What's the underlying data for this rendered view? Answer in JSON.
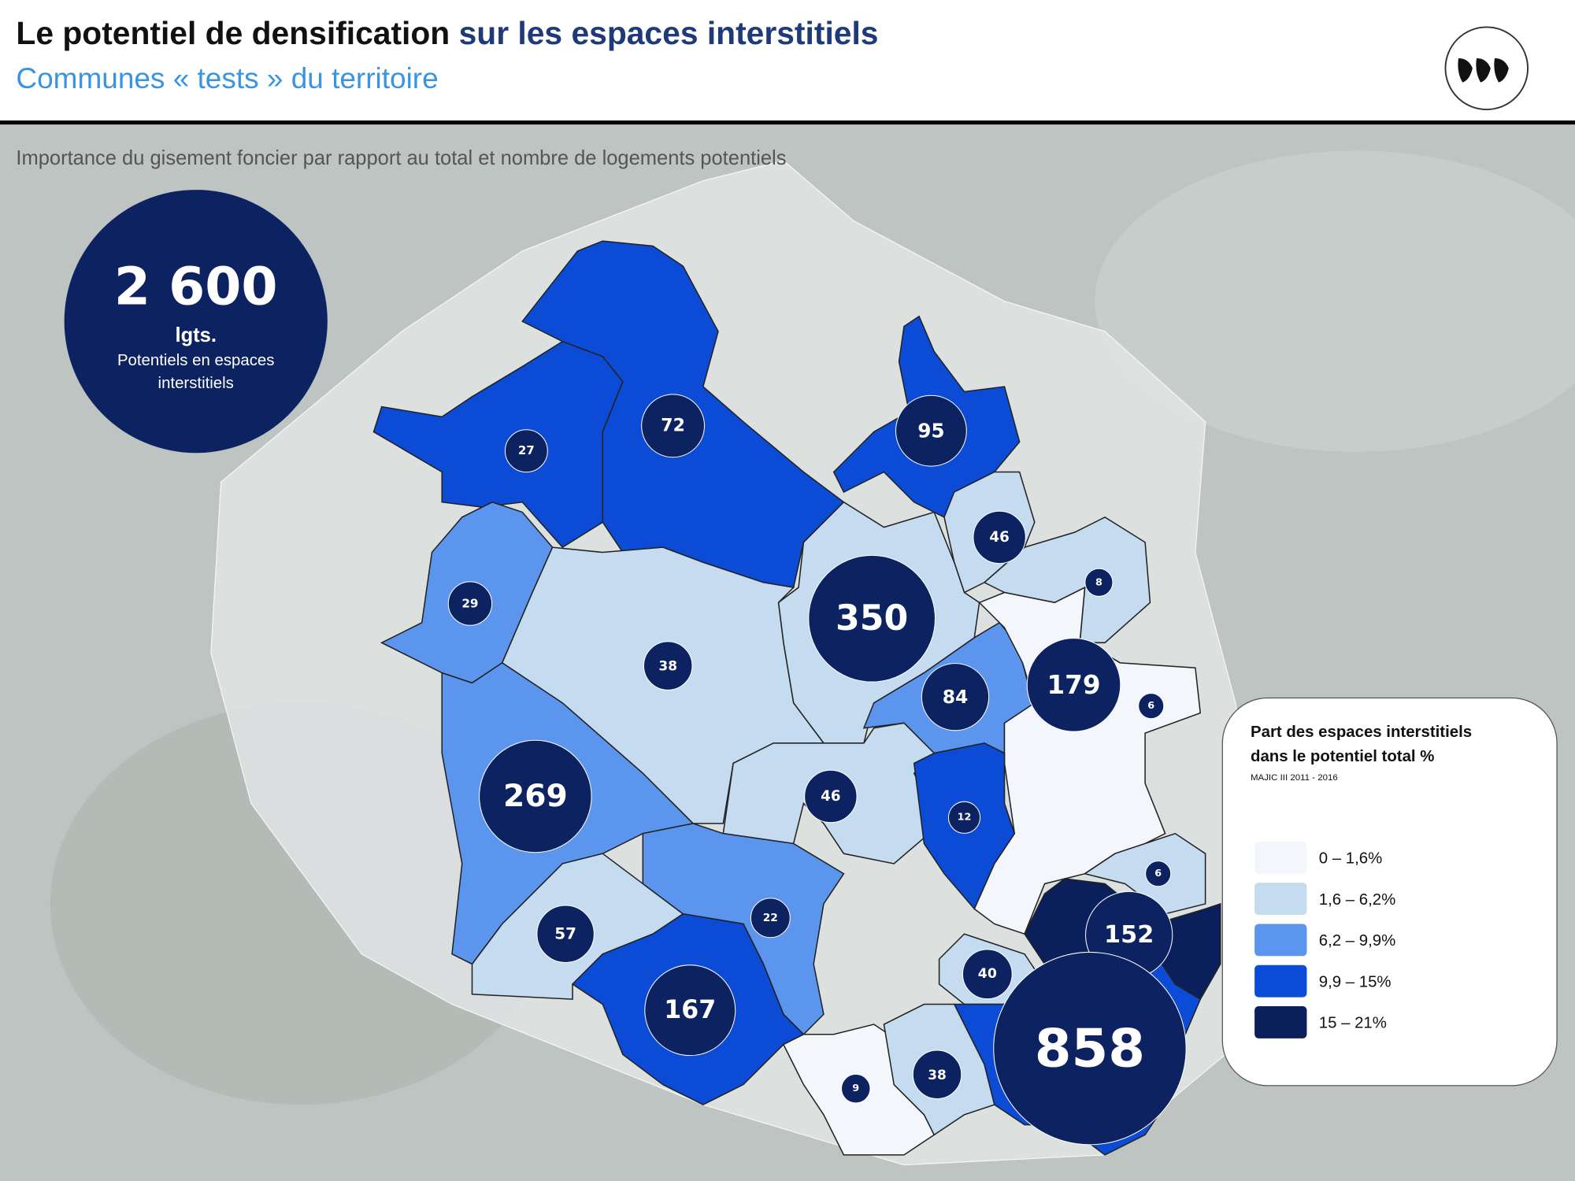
{
  "header": {
    "title_part1": "Le potentiel de densification",
    "title_part2": "sur les espaces interstitiels",
    "subtitle": "Communes « tests » du territoire"
  },
  "map": {
    "caption": "Importance du gisement foncier par rapport au total et nombre de logements potentiels",
    "total": {
      "value": 2600,
      "label": "2 600",
      "unit": "lgts.",
      "description": [
        "Potentiels en espaces",
        "interstitiels"
      ]
    },
    "communes": [
      {
        "value": 27,
        "color": "#0b4bd6"
      },
      {
        "value": 72,
        "color": "#0b4bd6"
      },
      {
        "value": 95,
        "color": "#0b4bd6"
      },
      {
        "value": 46,
        "color": "#c5dbf0"
      },
      {
        "value": 8,
        "color": "#c5dbf0"
      },
      {
        "value": 350,
        "color": "#c5dbf0"
      },
      {
        "value": 29,
        "color": "#5b95ee"
      },
      {
        "value": 38,
        "color": "#c5dbf0"
      },
      {
        "value": 84,
        "color": "#5b95ee"
      },
      {
        "value": 179,
        "color": "#5b95ee"
      },
      {
        "value": 6,
        "color": "#f3f7fc"
      },
      {
        "value": 269,
        "color": "#5b95ee"
      },
      {
        "value": 46,
        "color": "#c5dbf0"
      },
      {
        "value": 12,
        "color": "#0b4bd6"
      },
      {
        "value": 6,
        "color": "#c5dbf0"
      },
      {
        "value": 152,
        "color": "#0b1f5c"
      },
      {
        "value": 57,
        "color": "#c5dbf0"
      },
      {
        "value": 22,
        "color": "#5b95ee"
      },
      {
        "value": 167,
        "color": "#0b4bd6"
      },
      {
        "value": 40,
        "color": "#c5dbf0"
      },
      {
        "value": 858,
        "color": "#0b4bd6"
      },
      {
        "value": 9,
        "color": "#f3f7fc"
      },
      {
        "value": 38,
        "color": "#c5dbf0"
      }
    ]
  },
  "legend": {
    "title": [
      "Part des espaces interstitiels",
      "dans le potentiel total %"
    ],
    "source": "MAJIC III 2011 - 2016",
    "items": [
      {
        "label": "0 – 1,6%",
        "color": "#f3f7fc"
      },
      {
        "label": "1,6 – 6,2%",
        "color": "#c5dbf0"
      },
      {
        "label": "6,2 – 9,9%",
        "color": "#5b95ee"
      },
      {
        "label": "9,9 – 15%",
        "color": "#0b4bd6"
      },
      {
        "label": "15 – 21%",
        "color": "#0b1f5c"
      }
    ]
  }
}
